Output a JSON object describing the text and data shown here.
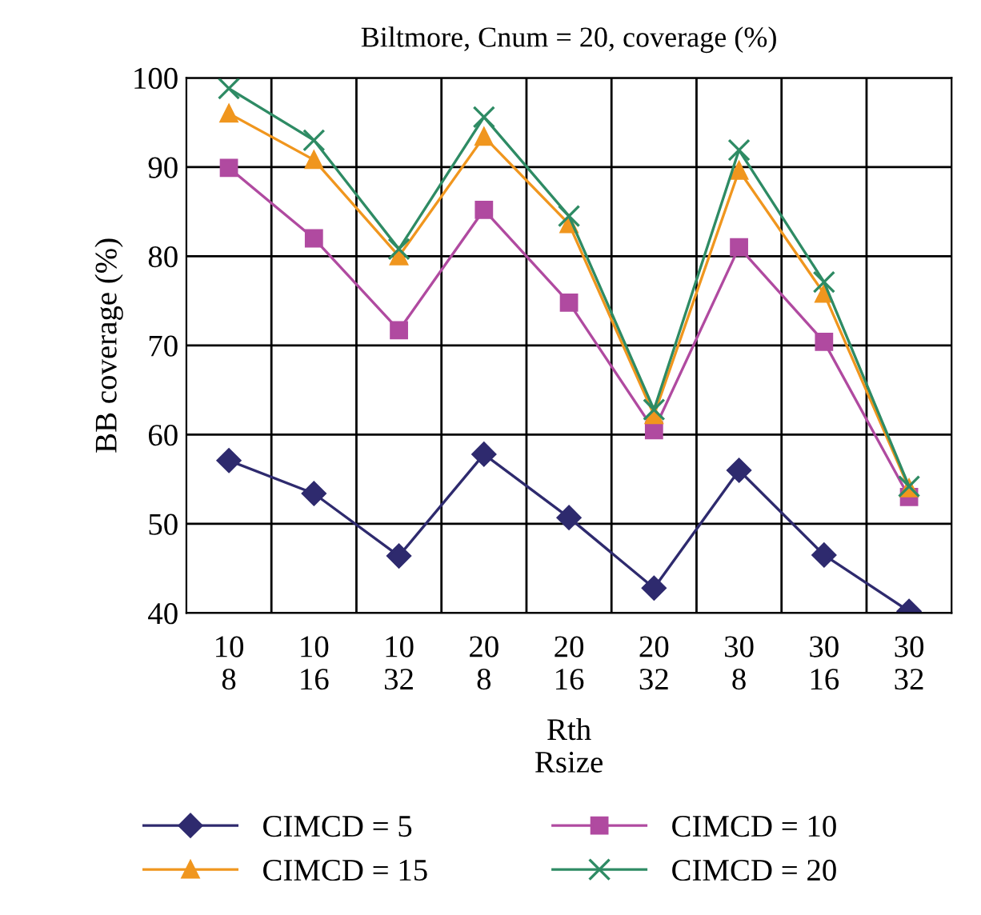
{
  "chart_data": {
    "type": "line",
    "title": "Biltmore, Cnum = 20, coverage (%)",
    "xlabel": "Rth\nRsize",
    "ylabel": "BB coverage (%)",
    "categories": [
      "10\n8",
      "10\n16",
      "10\n32",
      "20\n8",
      "20\n16",
      "20\n32",
      "30\n8",
      "30\n16",
      "30\n32"
    ],
    "series": [
      {
        "name": "CIMCD = 5",
        "color": "#2e2a6e",
        "marker": "diamond",
        "values": [
          57.1,
          53.4,
          46.4,
          57.8,
          50.7,
          42.8,
          56.0,
          46.5,
          40.2
        ]
      },
      {
        "name": "CIMCD = 10",
        "color": "#b04aa0",
        "marker": "square",
        "values": [
          89.9,
          82.0,
          71.7,
          85.2,
          74.8,
          60.5,
          81.0,
          70.4,
          53.0
        ]
      },
      {
        "name": "CIMCD = 15",
        "color": "#f0961e",
        "marker": "triangle",
        "values": [
          96.0,
          90.8,
          80.0,
          93.4,
          83.6,
          62.2,
          89.6,
          75.8,
          54.0
        ]
      },
      {
        "name": "CIMCD = 20",
        "color": "#2e8b64",
        "marker": "cross",
        "values": [
          98.8,
          93.0,
          80.8,
          95.6,
          84.5,
          62.8,
          91.9,
          77.1,
          54.2
        ]
      }
    ],
    "ylim": [
      40,
      100
    ],
    "yticks": [
      40,
      50,
      60,
      70,
      80,
      90,
      100
    ],
    "grid": true,
    "legend": "bottom"
  }
}
